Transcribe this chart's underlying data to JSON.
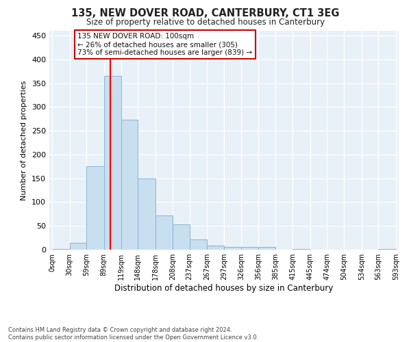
{
  "title": "135, NEW DOVER ROAD, CANTERBURY, CT1 3EG",
  "subtitle": "Size of property relative to detached houses in Canterbury",
  "xlabel": "Distribution of detached houses by size in Canterbury",
  "ylabel": "Number of detached properties",
  "bar_color": "#c8dff0",
  "bar_edge_color": "#8ab4d4",
  "background_color": "#e8f0f8",
  "grid_color": "#ffffff",
  "red_line_x": 100,
  "annotation_text": "135 NEW DOVER ROAD: 100sqm\n← 26% of detached houses are smaller (305)\n73% of semi-detached houses are larger (839) →",
  "annotation_box_color": "#ffffff",
  "annotation_box_edge": "#cc0000",
  "footer": "Contains HM Land Registry data © Crown copyright and database right 2024.\nContains public sector information licensed under the Open Government Licence v3.0.",
  "bin_edges": [
    0,
    30,
    59,
    89,
    119,
    148,
    178,
    208,
    237,
    267,
    297,
    326,
    356,
    385,
    415,
    445,
    474,
    504,
    534,
    563,
    593
  ],
  "bar_heights": [
    2,
    15,
    175,
    365,
    273,
    150,
    72,
    53,
    22,
    9,
    6,
    6,
    6,
    0,
    2,
    0,
    0,
    0,
    0,
    2
  ],
  "ylim": [
    0,
    460
  ],
  "yticks": [
    0,
    50,
    100,
    150,
    200,
    250,
    300,
    350,
    400,
    450
  ]
}
